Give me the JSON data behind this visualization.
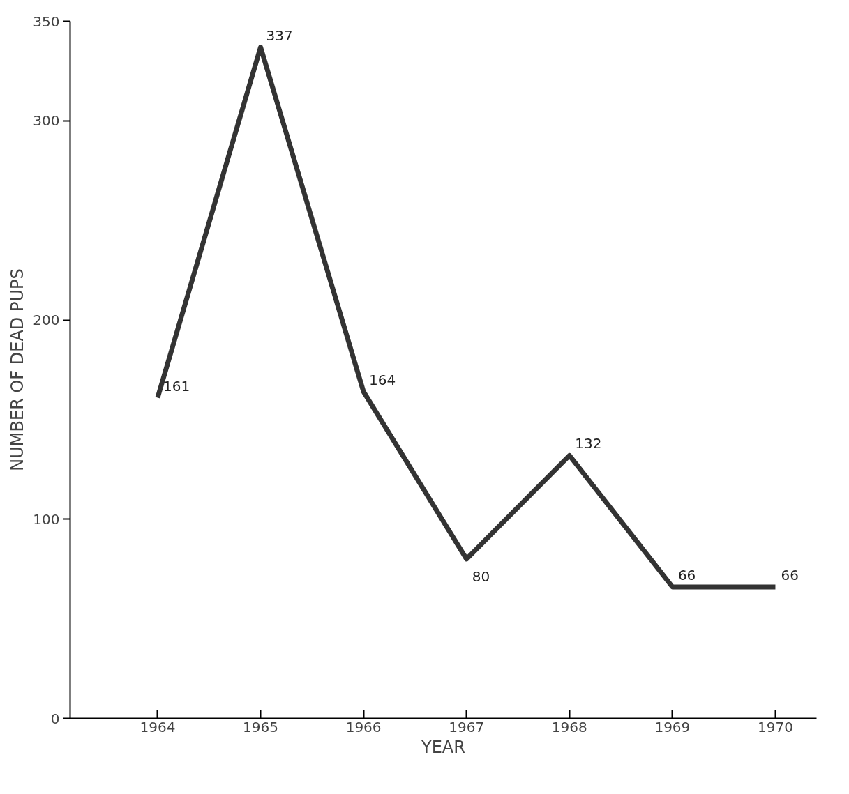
{
  "chart_data": {
    "type": "line",
    "xlabel": "YEAR",
    "ylabel": "NUMBER OF DEAD PUPS",
    "x": [
      1964,
      1965,
      1966,
      1967,
      1968,
      1969,
      1970
    ],
    "series": [
      {
        "color": "#333333",
        "values": [
          161,
          337,
          164,
          80,
          132,
          66,
          66
        ]
      }
    ],
    "xlim": [
      1963.15,
      1970.4
    ],
    "xticks": [
      1964,
      1965,
      1966,
      1967,
      1968,
      1969,
      1970
    ],
    "ylim": [
      0,
      350
    ],
    "yticks": [
      0,
      100,
      200,
      300,
      350
    ],
    "data_labels": true,
    "grid": false,
    "marker": "none",
    "line_style": "solid"
  }
}
